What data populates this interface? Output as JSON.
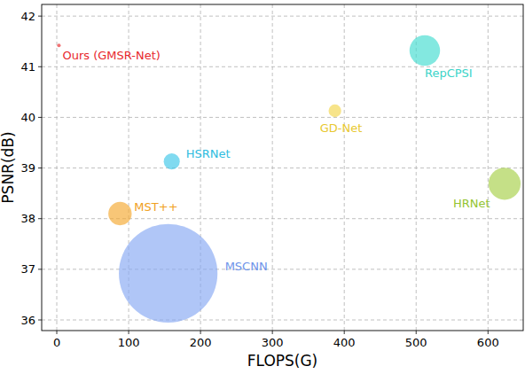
{
  "chart_data": {
    "type": "scatter",
    "x_label": "FLOPS(G)",
    "y_label": "PSNR(dB)",
    "labels": [
      "Ours (GMSR-Net)",
      "RepCPSI",
      "GD-Net",
      "HSRNet",
      "MST++",
      "MSCNN",
      "HRNet"
    ],
    "x": [
      3,
      512,
      387,
      160,
      88,
      155,
      623
    ],
    "values": [
      41.42,
      41.32,
      40.13,
      39.13,
      38.1,
      36.92,
      38.69
    ],
    "size": [
      0.4,
      29,
      5,
      8,
      17,
      302,
      32
    ],
    "colors": [
      "#e8282b",
      "#40dcd0",
      "#f2d64c",
      "#3cc6e8",
      "#f5a82e",
      "#86a8f2",
      "#a6d046"
    ],
    "xlim": [
      -21,
      649
    ],
    "ylim": [
      35.79,
      42.23
    ],
    "xticks": [
      0,
      100,
      200,
      300,
      400,
      500,
      600
    ],
    "yticks": [
      36,
      37,
      38,
      39,
      40,
      41,
      42
    ],
    "grid": true,
    "marker": "circle"
  }
}
